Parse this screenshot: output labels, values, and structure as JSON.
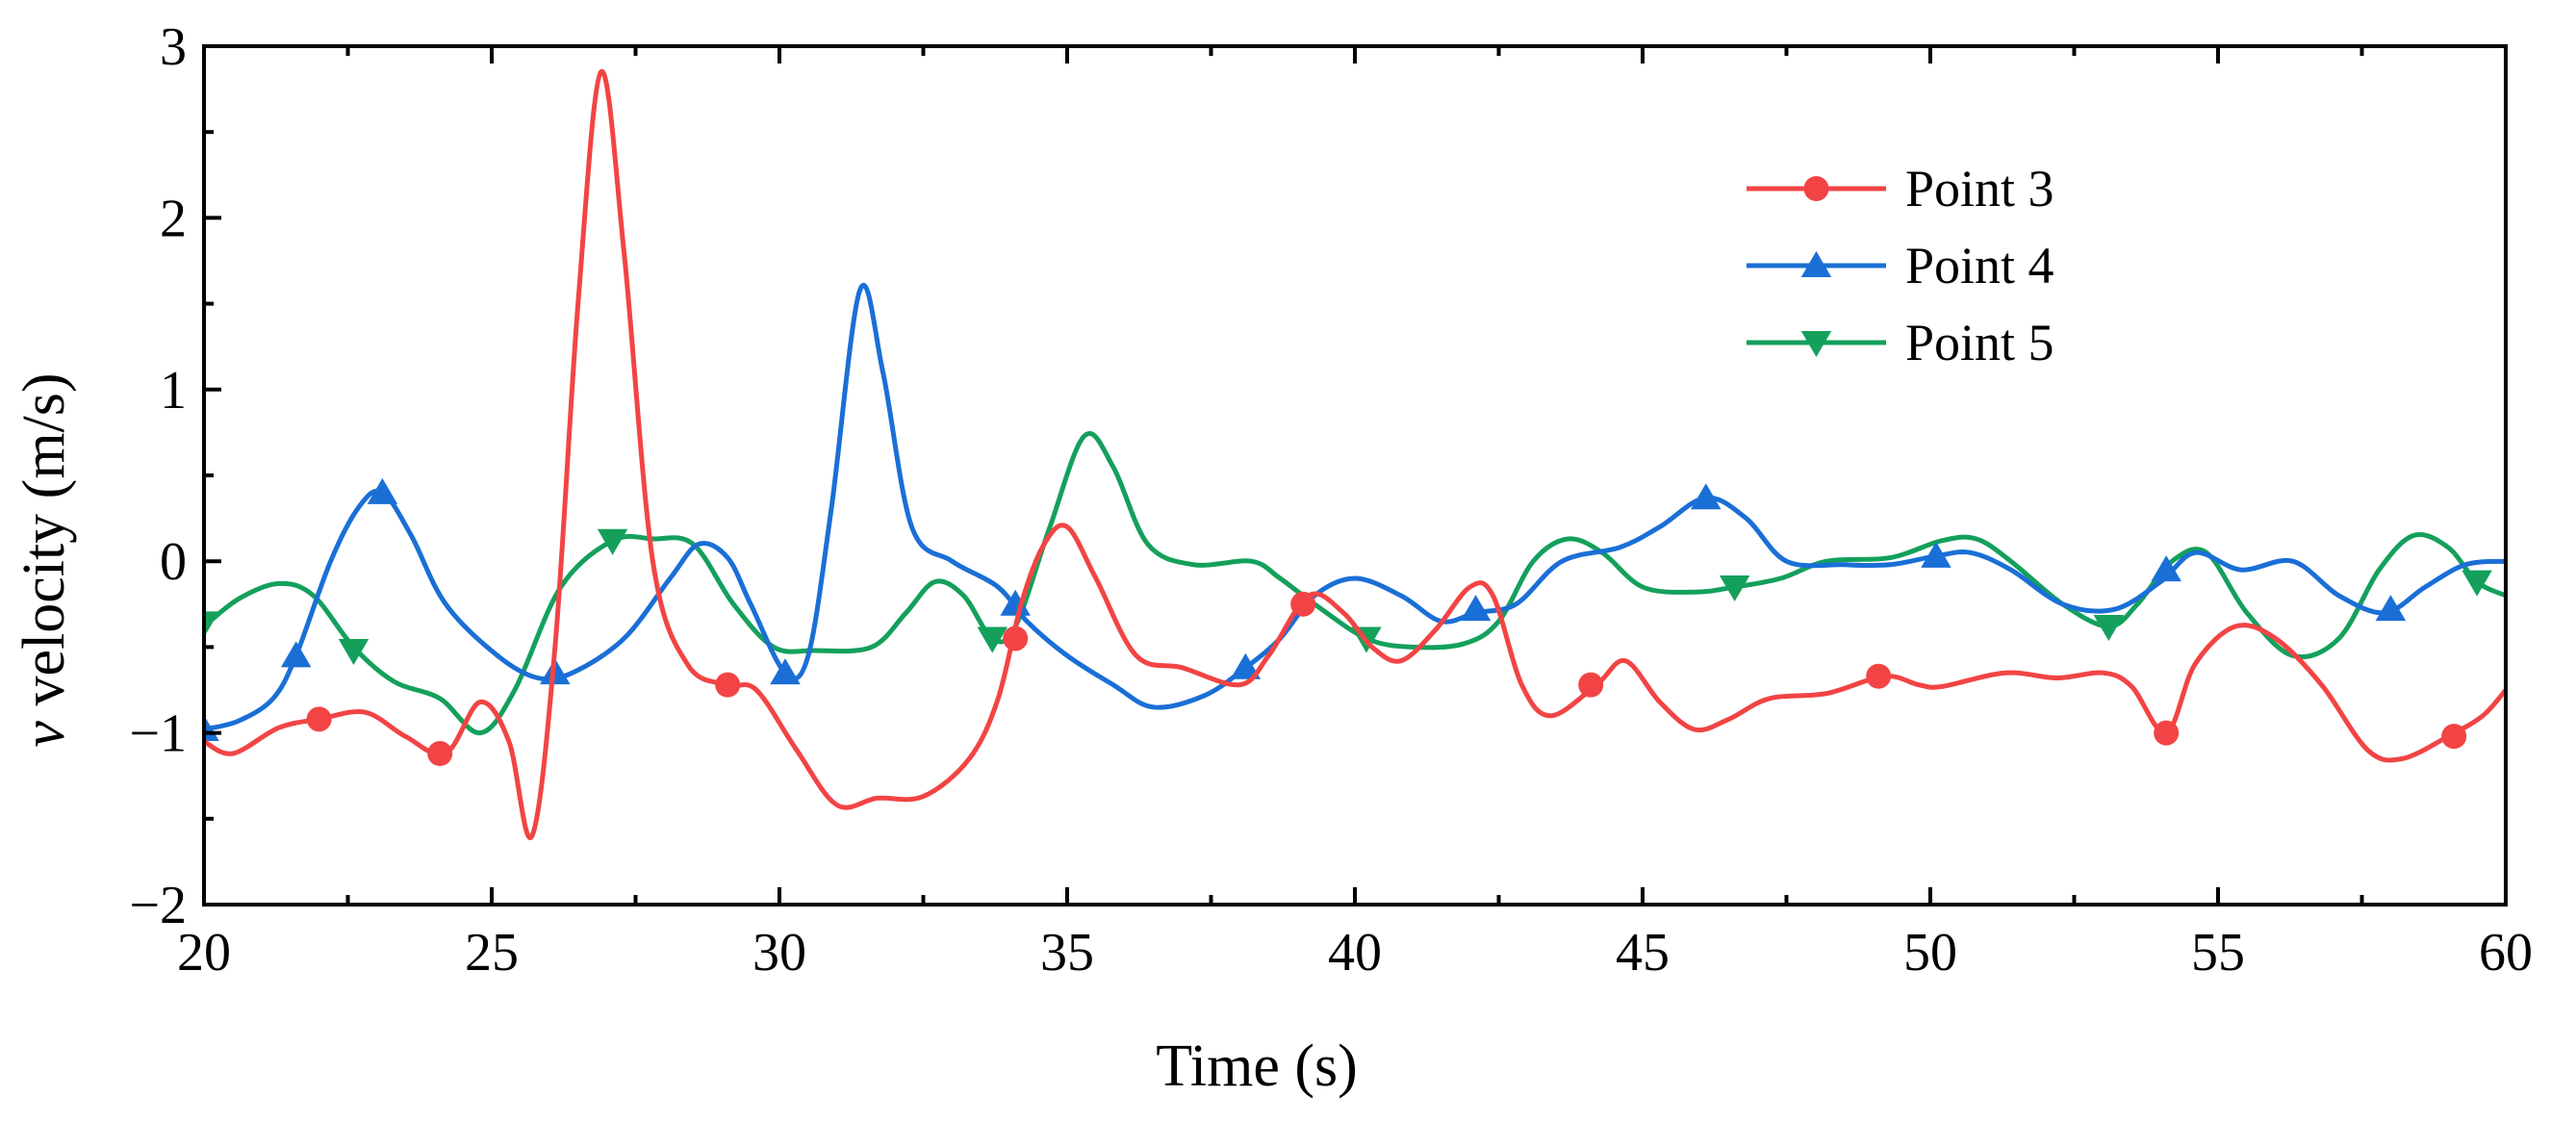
{
  "chart_data": {
    "type": "line",
    "title": "",
    "xlabel": "Time (s)",
    "ylabel_italic": "v",
    "ylabel_rest": " velocity (m/s)",
    "xlim": [
      20,
      60
    ],
    "ylim": [
      -2,
      3
    ],
    "xticks": [
      20,
      25,
      30,
      35,
      40,
      45,
      50,
      55,
      60
    ],
    "yticks": [
      -2,
      -1,
      0,
      1,
      2,
      3
    ],
    "ytick_labels": [
      "−2",
      "−1",
      "0",
      "1",
      "2",
      "3"
    ],
    "grid": false,
    "legend_position": "top-right",
    "series": [
      {
        "name": "Point 3",
        "color": "#f24444",
        "marker": "circle",
        "points": [
          [
            20,
            -1.05
          ],
          [
            20.5,
            -1.12
          ],
          [
            21.3,
            -0.97
          ],
          [
            22,
            -0.92
          ],
          [
            22.8,
            -0.88
          ],
          [
            23.5,
            -1.02
          ],
          [
            24.2,
            -1.12
          ],
          [
            24.8,
            -0.82
          ],
          [
            25.3,
            -1.05
          ],
          [
            25.7,
            -1.6
          ],
          [
            26.1,
            -0.5
          ],
          [
            26.5,
            1.5
          ],
          [
            26.9,
            2.85
          ],
          [
            27.3,
            1.8
          ],
          [
            27.8,
            0.0
          ],
          [
            28.4,
            -0.6
          ],
          [
            29.1,
            -0.72
          ],
          [
            29.6,
            -0.75
          ],
          [
            30.3,
            -1.1
          ],
          [
            31,
            -1.42
          ],
          [
            31.7,
            -1.38
          ],
          [
            32.5,
            -1.37
          ],
          [
            33.3,
            -1.15
          ],
          [
            33.8,
            -0.8
          ],
          [
            34.2,
            -0.25
          ],
          [
            34.6,
            0.1
          ],
          [
            35,
            0.2
          ],
          [
            35.5,
            -0.1
          ],
          [
            36.2,
            -0.55
          ],
          [
            37,
            -0.62
          ],
          [
            38,
            -0.72
          ],
          [
            38.5,
            -0.55
          ],
          [
            39.2,
            -0.2
          ],
          [
            39.8,
            -0.3
          ],
          [
            40.3,
            -0.5
          ],
          [
            40.8,
            -0.58
          ],
          [
            41.4,
            -0.4
          ],
          [
            42,
            -0.15
          ],
          [
            42.4,
            -0.2
          ],
          [
            42.9,
            -0.72
          ],
          [
            43.4,
            -0.9
          ],
          [
            44.2,
            -0.72
          ],
          [
            44.7,
            -0.58
          ],
          [
            45.3,
            -0.82
          ],
          [
            45.9,
            -0.98
          ],
          [
            46.5,
            -0.92
          ],
          [
            47.2,
            -0.8
          ],
          [
            48.2,
            -0.77
          ],
          [
            49.2,
            -0.67
          ],
          [
            49.8,
            -0.72
          ],
          [
            50.2,
            -0.73
          ],
          [
            51.3,
            -0.65
          ],
          [
            52.2,
            -0.68
          ],
          [
            53,
            -0.65
          ],
          [
            53.5,
            -0.73
          ],
          [
            54.1,
            -1.0
          ],
          [
            54.6,
            -0.6
          ],
          [
            55.3,
            -0.38
          ],
          [
            56,
            -0.45
          ],
          [
            56.8,
            -0.72
          ],
          [
            57.6,
            -1.1
          ],
          [
            58.2,
            -1.15
          ],
          [
            59,
            -1.02
          ],
          [
            59.6,
            -0.9
          ],
          [
            60,
            -0.75
          ]
        ]
      },
      {
        "name": "Point 4",
        "color": "#1a6fd6",
        "marker": "triangle-up",
        "points": [
          [
            20,
            -0.98
          ],
          [
            20.6,
            -0.93
          ],
          [
            21.2,
            -0.8
          ],
          [
            21.6,
            -0.55
          ],
          [
            22.2,
            0.0
          ],
          [
            22.7,
            0.32
          ],
          [
            23.1,
            0.4
          ],
          [
            23.6,
            0.15
          ],
          [
            24.2,
            -0.25
          ],
          [
            25.1,
            -0.55
          ],
          [
            25.8,
            -0.68
          ],
          [
            26.4,
            -0.65
          ],
          [
            27.3,
            -0.45
          ],
          [
            28.1,
            -0.1
          ],
          [
            28.6,
            0.1
          ],
          [
            29.1,
            0.02
          ],
          [
            29.5,
            -0.25
          ],
          [
            30.1,
            -0.65
          ],
          [
            30.5,
            -0.55
          ],
          [
            30.9,
            0.3
          ],
          [
            31.4,
            1.58
          ],
          [
            31.8,
            1.1
          ],
          [
            32.3,
            0.2
          ],
          [
            33,
            0.0
          ],
          [
            33.8,
            -0.15
          ],
          [
            34.3,
            -0.35
          ],
          [
            35,
            -0.55
          ],
          [
            35.8,
            -0.72
          ],
          [
            36.5,
            -0.85
          ],
          [
            37.4,
            -0.78
          ],
          [
            38.1,
            -0.62
          ],
          [
            38.7,
            -0.45
          ],
          [
            39.3,
            -0.2
          ],
          [
            40,
            -0.1
          ],
          [
            40.8,
            -0.2
          ],
          [
            41.5,
            -0.35
          ],
          [
            42.1,
            -0.3
          ],
          [
            42.8,
            -0.25
          ],
          [
            43.6,
            0.0
          ],
          [
            44.6,
            0.08
          ],
          [
            45.3,
            0.2
          ],
          [
            46.1,
            0.37
          ],
          [
            46.8,
            0.25
          ],
          [
            47.5,
            0.0
          ],
          [
            48.5,
            -0.02
          ],
          [
            49.3,
            -0.02
          ],
          [
            50.1,
            0.03
          ],
          [
            50.7,
            0.05
          ],
          [
            51.4,
            -0.05
          ],
          [
            52.3,
            -0.25
          ],
          [
            53.2,
            -0.28
          ],
          [
            54,
            -0.12
          ],
          [
            54.6,
            0.05
          ],
          [
            55.4,
            -0.05
          ],
          [
            56.3,
            0.0
          ],
          [
            57.1,
            -0.2
          ],
          [
            57.9,
            -0.3
          ],
          [
            58.6,
            -0.15
          ],
          [
            59.3,
            -0.02
          ],
          [
            60,
            0.0
          ]
        ]
      },
      {
        "name": "Point 5",
        "color": "#14a05c",
        "marker": "triangle-down",
        "points": [
          [
            20,
            -0.38
          ],
          [
            20.6,
            -0.22
          ],
          [
            21.3,
            -0.13
          ],
          [
            21.9,
            -0.2
          ],
          [
            22.6,
            -0.5
          ],
          [
            23.3,
            -0.7
          ],
          [
            24.1,
            -0.8
          ],
          [
            24.8,
            -1.0
          ],
          [
            25.4,
            -0.75
          ],
          [
            26.2,
            -0.15
          ],
          [
            27.1,
            0.12
          ],
          [
            27.8,
            0.13
          ],
          [
            28.5,
            0.1
          ],
          [
            29.2,
            -0.25
          ],
          [
            29.9,
            -0.5
          ],
          [
            30.6,
            -0.52
          ],
          [
            31.6,
            -0.5
          ],
          [
            32.2,
            -0.3
          ],
          [
            32.7,
            -0.12
          ],
          [
            33.2,
            -0.2
          ],
          [
            33.7,
            -0.45
          ],
          [
            34.1,
            -0.38
          ],
          [
            34.7,
            0.2
          ],
          [
            35.3,
            0.73
          ],
          [
            35.8,
            0.55
          ],
          [
            36.4,
            0.1
          ],
          [
            37.2,
            -0.02
          ],
          [
            38.2,
            0.0
          ],
          [
            38.7,
            -0.1
          ],
          [
            39.3,
            -0.25
          ],
          [
            40.2,
            -0.45
          ],
          [
            41,
            -0.5
          ],
          [
            41.9,
            -0.48
          ],
          [
            42.5,
            -0.35
          ],
          [
            43.1,
            0.0
          ],
          [
            43.7,
            0.13
          ],
          [
            44.3,
            0.05
          ],
          [
            45,
            -0.15
          ],
          [
            45.9,
            -0.18
          ],
          [
            46.6,
            -0.15
          ],
          [
            47.4,
            -0.1
          ],
          [
            48.2,
            0.0
          ],
          [
            49.3,
            0.02
          ],
          [
            50.2,
            0.12
          ],
          [
            50.8,
            0.13
          ],
          [
            51.4,
            0.0
          ],
          [
            52.3,
            -0.25
          ],
          [
            53.1,
            -0.38
          ],
          [
            53.6,
            -0.25
          ],
          [
            54.2,
            0.0
          ],
          [
            54.8,
            0.05
          ],
          [
            55.5,
            -0.3
          ],
          [
            56.3,
            -0.55
          ],
          [
            57.1,
            -0.45
          ],
          [
            57.8,
            -0.05
          ],
          [
            58.4,
            0.15
          ],
          [
            59,
            0.08
          ],
          [
            59.5,
            -0.12
          ],
          [
            60,
            -0.2
          ]
        ]
      }
    ],
    "marker_points": {
      "Point 3": [
        [
          22,
          -0.92
        ],
        [
          24.1,
          -1.12
        ],
        [
          29.1,
          -0.72
        ],
        [
          34.1,
          -0.45
        ],
        [
          39.1,
          -0.25
        ],
        [
          44.1,
          -0.72
        ],
        [
          49.1,
          -0.67
        ],
        [
          54.1,
          -1.0
        ],
        [
          59.1,
          -1.02
        ]
      ],
      "Point 4": [
        [
          20,
          -0.98
        ],
        [
          21.6,
          -0.55
        ],
        [
          23.1,
          0.4
        ],
        [
          26.1,
          -0.65
        ],
        [
          30.1,
          -0.65
        ],
        [
          34.1,
          -0.25
        ],
        [
          38.1,
          -0.62
        ],
        [
          42.1,
          -0.28
        ],
        [
          46.1,
          0.37
        ],
        [
          50.1,
          0.03
        ],
        [
          54.1,
          -0.05
        ],
        [
          58,
          -0.28
        ]
      ],
      "Point 5": [
        [
          20,
          -0.36
        ],
        [
          22.6,
          -0.52
        ],
        [
          27.1,
          0.12
        ],
        [
          33.7,
          -0.45
        ],
        [
          40.2,
          -0.45
        ],
        [
          46.6,
          -0.15
        ],
        [
          53.1,
          -0.38
        ],
        [
          59.5,
          -0.12
        ]
      ]
    }
  }
}
